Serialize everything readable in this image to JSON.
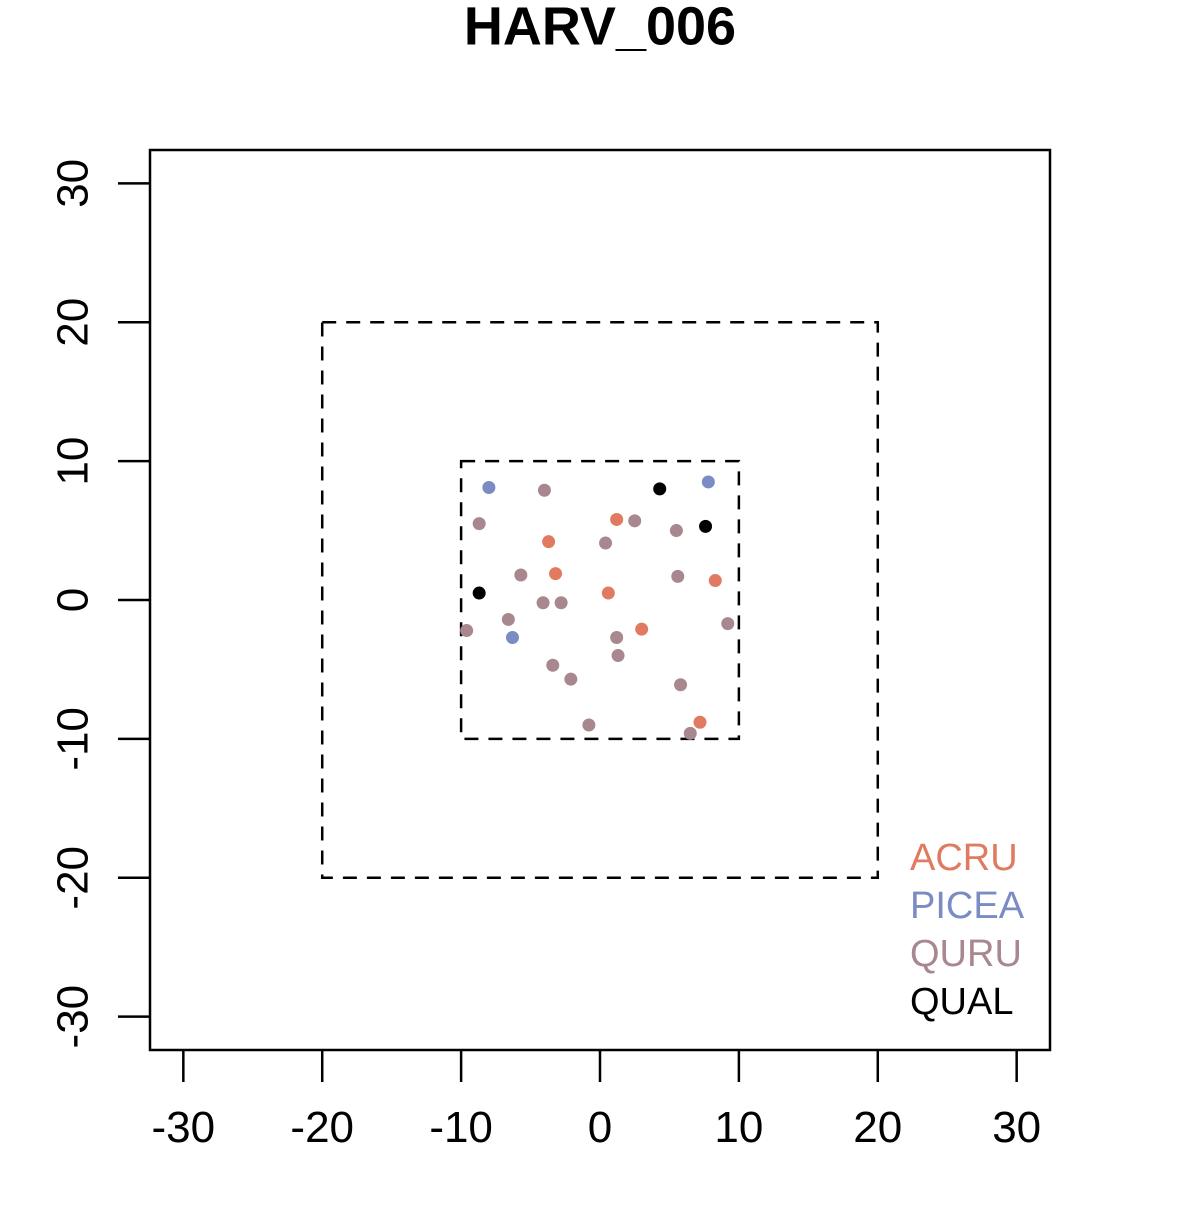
{
  "chart_data": {
    "type": "scatter",
    "title": "HARV_006",
    "xlim": [
      -32.4,
      32.4
    ],
    "ylim": [
      -32.4,
      32.4
    ],
    "xticks": [
      -30,
      -20,
      -10,
      0,
      10,
      20,
      30
    ],
    "yticks": [
      -30,
      -20,
      -10,
      0,
      10,
      20,
      30
    ],
    "boxes": [
      {
        "x": [
          -10,
          10
        ],
        "y": [
          -10,
          10
        ]
      },
      {
        "x": [
          -20,
          20
        ],
        "y": [
          -20,
          20
        ]
      }
    ],
    "legend": "bottom-right",
    "series": [
      {
        "name": "ACRU",
        "color": "#e07b62",
        "x": [
          1.2,
          -3.7,
          -3.2,
          0.6,
          8.3,
          3.0,
          7.2
        ],
        "y": [
          5.8,
          4.2,
          1.9,
          0.5,
          1.4,
          -2.1,
          -8.8
        ]
      },
      {
        "name": "PICEA",
        "color": "#7b8cc4",
        "x": [
          -8.0,
          7.8,
          -6.3
        ],
        "y": [
          8.1,
          8.5,
          -2.7
        ]
      },
      {
        "name": "QURU",
        "color": "#a8878f",
        "x": [
          -4.0,
          -8.7,
          0.4,
          2.5,
          5.5,
          -5.7,
          5.6,
          -4.1,
          -2.8,
          -6.6,
          -9.6,
          1.2,
          9.2,
          1.3,
          -3.4,
          -2.1,
          5.8,
          -0.8,
          6.5
        ],
        "y": [
          7.9,
          5.5,
          4.1,
          5.7,
          5.0,
          1.8,
          1.7,
          -0.2,
          -0.2,
          -1.4,
          -2.2,
          -2.7,
          -1.7,
          -4.0,
          -4.7,
          -5.7,
          -6.1,
          -9.0,
          -9.6
        ]
      },
      {
        "name": "QUAL",
        "color": "#000000",
        "x": [
          4.3,
          7.6,
          -8.7
        ],
        "y": [
          8.0,
          5.3,
          0.5
        ]
      }
    ]
  }
}
